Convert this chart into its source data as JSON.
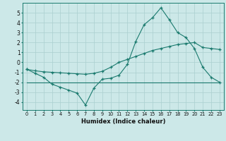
{
  "line1_x": [
    0,
    1,
    2,
    3,
    4,
    5,
    6,
    7,
    8,
    9,
    10,
    11,
    12,
    13,
    14,
    15,
    16,
    17,
    18,
    19,
    20,
    21,
    22,
    23
  ],
  "line1_y": [
    -0.7,
    -1.1,
    -1.5,
    -2.2,
    -2.5,
    -2.8,
    -3.1,
    -4.3,
    -2.6,
    -1.7,
    -1.6,
    -1.3,
    -0.2,
    2.1,
    3.8,
    4.5,
    5.5,
    4.3,
    3.0,
    2.5,
    1.4,
    -0.5,
    -1.5,
    -2.0
  ],
  "line2_x": [
    0,
    1,
    2,
    3,
    4,
    5,
    6,
    7,
    8,
    9,
    10,
    11,
    12,
    13,
    14,
    15,
    16,
    17,
    18,
    19,
    20,
    21,
    22,
    23
  ],
  "line2_y": [
    -0.7,
    -0.85,
    -0.95,
    -1.0,
    -1.05,
    -1.1,
    -1.15,
    -1.2,
    -1.1,
    -0.9,
    -0.5,
    0.0,
    0.3,
    0.6,
    0.9,
    1.2,
    1.4,
    1.6,
    1.8,
    1.9,
    2.0,
    1.5,
    1.4,
    1.3
  ],
  "line3_x": [
    0,
    23
  ],
  "line3_y": [
    -2.0,
    -2.0
  ],
  "line_color": "#1a7a6e",
  "bg_color": "#cce8e8",
  "grid_color": "#aacfcf",
  "xlabel": "Humidex (Indice chaleur)",
  "yticks": [
    -4,
    -3,
    -2,
    -1,
    0,
    1,
    2,
    3,
    4,
    5
  ],
  "xticks": [
    0,
    1,
    2,
    3,
    4,
    5,
    6,
    7,
    8,
    9,
    10,
    11,
    12,
    13,
    14,
    15,
    16,
    17,
    18,
    19,
    20,
    21,
    22,
    23
  ],
  "xlim": [
    -0.5,
    23.5
  ],
  "ylim": [
    -4.8,
    6.0
  ]
}
